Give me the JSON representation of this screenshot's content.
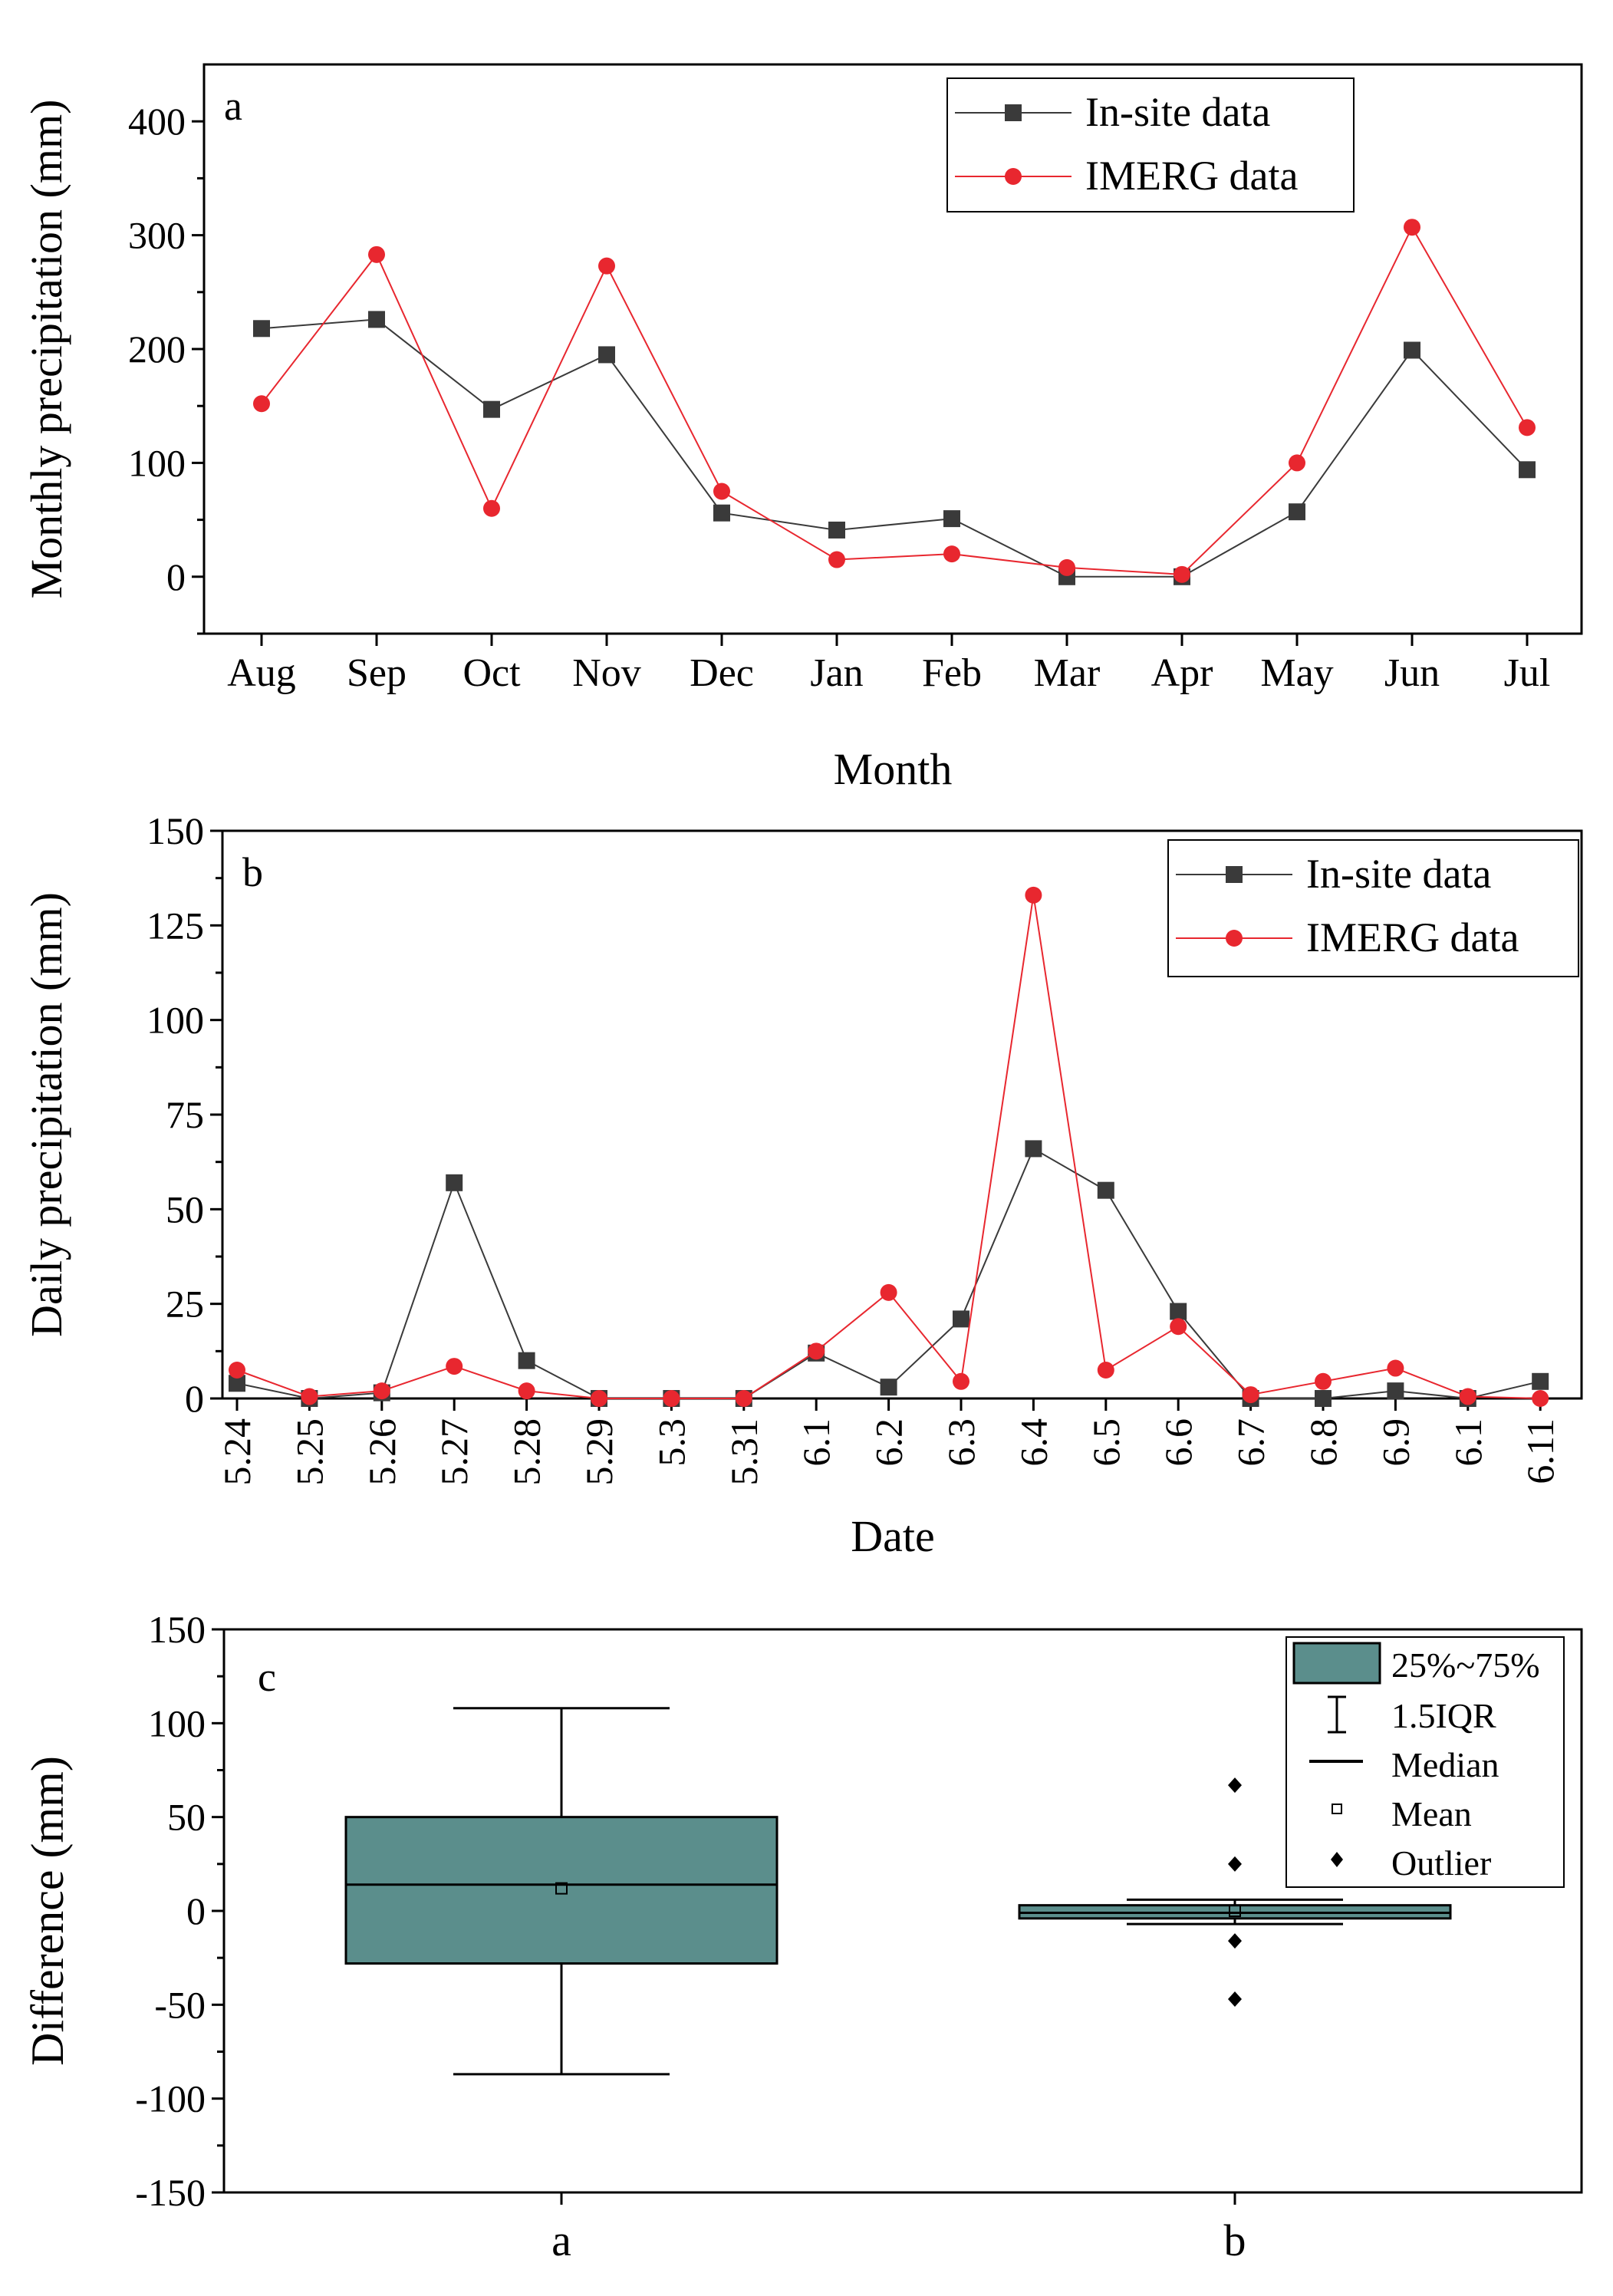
{
  "chart_data": [
    {
      "type": "line",
      "panel_label": "a",
      "xlabel": "Month",
      "ylabel": "Monthly precipitation (mm)",
      "ylim": [
        -50,
        450
      ],
      "yticks": [
        0,
        100,
        200,
        300,
        400
      ],
      "categories": [
        "Aug",
        "Sep",
        "Oct",
        "Nov",
        "Dec",
        "Jan",
        "Feb",
        "Mar",
        "Apr",
        "May",
        "Jun",
        "Jul"
      ],
      "legend_position": "top-right",
      "series": [
        {
          "name": "In-site data",
          "marker": "square",
          "color": "#3a3a3a",
          "values": [
            218,
            226,
            147,
            195,
            56,
            41,
            51,
            0,
            0,
            57,
            199,
            94
          ]
        },
        {
          "name": "IMERG data",
          "marker": "circle",
          "color": "#e8272f",
          "values": [
            152,
            283,
            60,
            273,
            75,
            15,
            20,
            8,
            2,
            100,
            307,
            131
          ]
        }
      ]
    },
    {
      "type": "line",
      "panel_label": "b",
      "xlabel": "Date",
      "ylabel": "Daily precipitation (mm)",
      "ylim": [
        0,
        150
      ],
      "yticks": [
        0,
        25,
        50,
        75,
        100,
        125,
        150
      ],
      "categories": [
        "5.24",
        "5.25",
        "5.26",
        "5.27",
        "5.28",
        "5.29",
        "5.3",
        "5.31",
        "6.1",
        "6.2",
        "6.3",
        "6.4",
        "6.5",
        "6.6",
        "6.7",
        "6.8",
        "6.9",
        "6.1",
        "6.11"
      ],
      "legend_position": "top-right",
      "series": [
        {
          "name": "In-site data",
          "marker": "square",
          "color": "#3a3a3a",
          "values": [
            4,
            0,
            1.5,
            57,
            10,
            0,
            0,
            0,
            12,
            3,
            21,
            66,
            55,
            23,
            0,
            0,
            2,
            0,
            4.5
          ]
        },
        {
          "name": "IMERG data",
          "marker": "circle",
          "color": "#e8272f",
          "values": [
            7.5,
            0.5,
            2,
            8.5,
            2,
            0,
            0,
            0,
            12.5,
            28,
            4.5,
            133,
            7.5,
            19,
            1,
            4.5,
            8,
            0.5,
            0
          ]
        }
      ]
    },
    {
      "type": "box",
      "panel_label": "c",
      "ylabel": "Difference (mm)",
      "ylim": [
        -150,
        150
      ],
      "yticks": [
        -150,
        -100,
        -50,
        0,
        50,
        100,
        150
      ],
      "categories": [
        "a",
        "b"
      ],
      "legend_position": "top-right",
      "legend": [
        "25%~75%",
        "1.5IQR",
        "Median",
        "Mean",
        "Outlier"
      ],
      "box_color": "#5b8e8c",
      "boxes": [
        {
          "name": "a",
          "q1": -28,
          "q3": 50,
          "median": 14,
          "mean": 12,
          "whisker_low": -87,
          "whisker_high": 108,
          "outliers": []
        },
        {
          "name": "b",
          "q1": -4,
          "q3": 3,
          "median": -1,
          "mean": 0,
          "whisker_low": -7,
          "whisker_high": 6,
          "outliers": [
            67,
            25,
            -16,
            -47
          ]
        }
      ]
    }
  ]
}
